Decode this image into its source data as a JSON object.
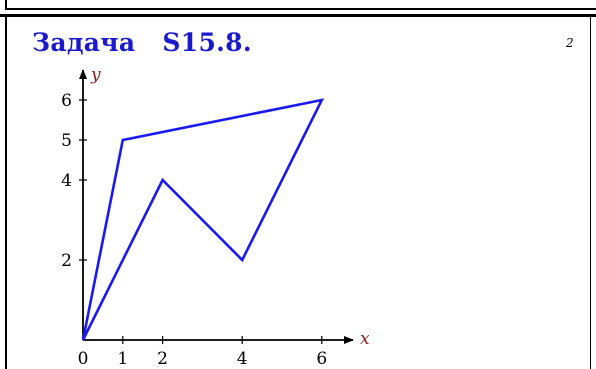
{
  "slide": {
    "title": "Задача   S15.8.",
    "page_number": "2"
  },
  "diagram": {
    "x_axis_label": "x",
    "y_axis_label": "y",
    "x_ticks": [
      "0",
      "1",
      "2",
      "4",
      "6"
    ],
    "y_ticks": [
      "2",
      "4",
      "5",
      "6"
    ],
    "polyline_color": "#1a1aee"
  },
  "chart_data": {
    "type": "line",
    "xlabel": "x",
    "ylabel": "y",
    "xlim": [
      0,
      6.6
    ],
    "ylim": [
      0,
      6.2
    ],
    "x_ticks": [
      0,
      1,
      2,
      4,
      6
    ],
    "y_ticks": [
      2,
      4,
      5,
      6
    ],
    "series": [
      {
        "points": [
          [
            0,
            0
          ],
          [
            1,
            5
          ],
          [
            6,
            6
          ],
          [
            4,
            2
          ],
          [
            2,
            4
          ],
          [
            0,
            0
          ]
        ]
      }
    ]
  }
}
